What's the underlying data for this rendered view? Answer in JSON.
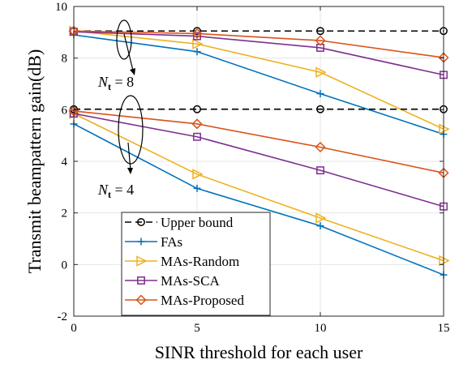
{
  "chart_data": {
    "type": "line",
    "xlabel": "SINR threshold for each user",
    "ylabel": "Transmit beampattern gain(dB)",
    "xlim": [
      0,
      15
    ],
    "ylim": [
      -2,
      10
    ],
    "xticks": [
      0,
      5,
      10,
      15
    ],
    "yticks": [
      -2,
      0,
      2,
      4,
      6,
      8,
      10
    ],
    "x": [
      0,
      5,
      10,
      15
    ],
    "grid": true,
    "legend_position": "bottom-left",
    "groups": [
      {
        "label": "N_t = 8",
        "series": [
          {
            "name": "Upper bound",
            "values": [
              9.05,
              9.05,
              9.05,
              9.05
            ]
          },
          {
            "name": "FAs",
            "values": [
              8.9,
              8.25,
              6.62,
              5.05
            ]
          },
          {
            "name": "MAs-Random",
            "values": [
              9.05,
              8.55,
              7.45,
              5.25
            ]
          },
          {
            "name": "MAs-SCA",
            "values": [
              9.02,
              8.85,
              8.4,
              7.35
            ]
          },
          {
            "name": "MAs-Proposed",
            "values": [
              9.05,
              8.95,
              8.68,
              8.02
            ]
          }
        ]
      },
      {
        "label": "N_t = 4",
        "series": [
          {
            "name": "Upper bound",
            "values": [
              6.02,
              6.02,
              6.02,
              6.02
            ]
          },
          {
            "name": "FAs",
            "values": [
              5.45,
              2.95,
              1.5,
              -0.4
            ]
          },
          {
            "name": "MAs-Random",
            "values": [
              5.85,
              3.5,
              1.8,
              0.15
            ]
          },
          {
            "name": "MAs-SCA",
            "values": [
              5.85,
              4.95,
              3.65,
              2.25
            ]
          },
          {
            "name": "MAs-Proposed",
            "values": [
              5.95,
              5.45,
              4.55,
              3.55
            ]
          }
        ]
      }
    ],
    "legend": [
      "Upper bound",
      "FAs",
      "MAs-Random",
      "MAs-SCA",
      "MAs-Proposed"
    ],
    "styles": {
      "Upper bound": {
        "color": "#000000",
        "dash": "8,5",
        "marker": "circle"
      },
      "FAs": {
        "color": "#0072BD",
        "dash": "",
        "marker": "plus"
      },
      "MAs-Random": {
        "color": "#EDB120",
        "dash": "",
        "marker": "triangle-right"
      },
      "MAs-SCA": {
        "color": "#7E2F8E",
        "dash": "",
        "marker": "square"
      },
      "MAs-Proposed": {
        "color": "#D95319",
        "dash": "",
        "marker": "diamond"
      }
    },
    "annotations": [
      {
        "label_base": "N",
        "label_sub": "t",
        "label_rest": " = 8"
      },
      {
        "label_base": "N",
        "label_sub": "t",
        "label_rest": " = 4"
      }
    ]
  }
}
